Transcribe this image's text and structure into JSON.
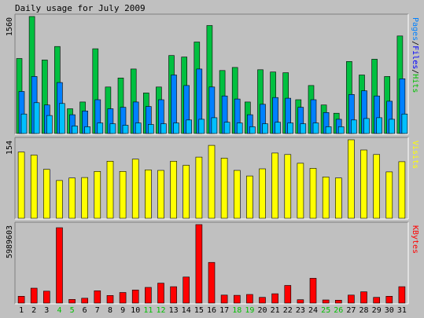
{
  "title": "Daily usage for July 2009",
  "chart_data": {
    "type": "bar",
    "days": [
      "1",
      "2",
      "3",
      "4",
      "5",
      "6",
      "7",
      "8",
      "9",
      "10",
      "11",
      "12",
      "13",
      "14",
      "15",
      "16",
      "17",
      "18",
      "19",
      "20",
      "21",
      "22",
      "23",
      "24",
      "25",
      "26",
      "27",
      "28",
      "29",
      "30",
      "31"
    ],
    "weekend_days": [
      "4",
      "5",
      "11",
      "12",
      "18",
      "19",
      "25",
      "26"
    ],
    "panels": [
      {
        "id": "hits",
        "max_label": "1560",
        "ylim": [
          0,
          1560
        ],
        "legend": [
          "Pages",
          "/",
          "Files",
          "/",
          "Hits"
        ],
        "legend_colors": [
          "#0080ff",
          "#000000",
          "#0000ff",
          "#000000",
          "#00c000"
        ],
        "series": [
          {
            "name": "Hits",
            "color": "#00c040",
            "values": [
              1000,
              1560,
              980,
              1160,
              330,
              420,
              1130,
              620,
              740,
              860,
              540,
              620,
              1040,
              1020,
              1220,
              1440,
              840,
              880,
              420,
              850,
              820,
              810,
              450,
              640,
              380,
              270,
              960,
              780,
              990,
              760,
              1300
            ]
          },
          {
            "name": "Files",
            "color": "#0080ff",
            "values": [
              560,
              760,
              380,
              680,
              250,
              300,
              450,
              330,
              350,
              420,
              360,
              450,
              780,
              640,
              860,
              620,
              500,
              460,
              250,
              390,
              480,
              470,
              350,
              450,
              280,
              190,
              520,
              570,
              500,
              430,
              730
            ]
          },
          {
            "name": "Pages",
            "color": "#00c0ff",
            "values": [
              260,
              410,
              240,
              400,
              100,
              90,
              140,
              130,
              110,
              140,
              120,
              130,
              140,
              180,
              190,
              210,
              150,
              140,
              90,
              130,
              150,
              140,
              130,
              140,
              90,
              90,
              180,
              200,
              210,
              190,
              260
            ]
          }
        ]
      },
      {
        "id": "visits",
        "max_label": "154",
        "ylim": [
          0,
          154
        ],
        "legend": [
          "Visits"
        ],
        "legend_colors": [
          "#ffff00"
        ],
        "series": [
          {
            "name": "Visits",
            "color": "#ffff00",
            "values": [
              130,
              124,
              96,
              74,
              79,
              80,
              92,
              112,
              92,
              116,
              95,
              94,
              112,
              104,
              120,
              143,
              118,
              94,
              83,
              97,
              128,
              125,
              108,
              98,
              81,
              79,
              154,
              134,
              125,
              91,
              111
            ]
          }
        ]
      },
      {
        "id": "kbytes",
        "max_label": "5989603",
        "ylim": [
          0,
          5989603
        ],
        "legend": [
          "KBytes"
        ],
        "legend_colors": [
          "#ff0000"
        ],
        "series": [
          {
            "name": "KBytes",
            "color": "#ff0000",
            "values": [
              520000,
              1140000,
              910000,
              5750000,
              280000,
              370000,
              940000,
              580000,
              810000,
              1000000,
              1200000,
              1520000,
              1250000,
              1990000,
              5989603,
              3100000,
              610000,
              590000,
              660000,
              440000,
              710000,
              1350000,
              260000,
              1890000,
              240000,
              220000,
              610000,
              860000,
              440000,
              520000,
              1250000
            ]
          }
        ]
      }
    ]
  },
  "colors": {
    "background": "#c0c0c0",
    "plot_bg": "#c0c0c0",
    "weekday_label": "#000000",
    "weekend_label": "#00c000"
  }
}
